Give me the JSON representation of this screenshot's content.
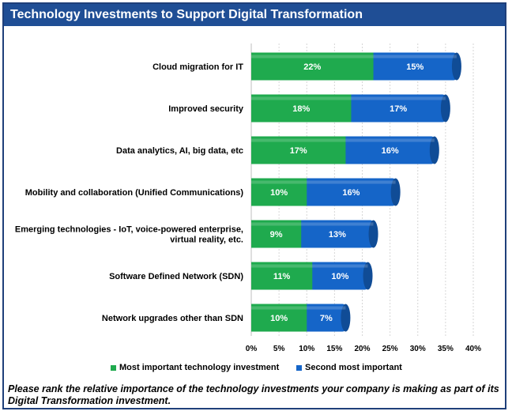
{
  "title": "Technology Investments to Support Digital Transformation",
  "note": "Please rank the relative importance of the technology investments your company is making as part of its Digital Transformation investment.",
  "colors": {
    "header_bg": "#1f4e95",
    "most_important": "#1faa4e",
    "second_most": "#1565c8"
  },
  "chart_data": {
    "type": "bar",
    "orientation": "horizontal",
    "stacked": true,
    "categories": [
      "Cloud migration for IT",
      "Improved security",
      "Data analytics, AI, big data, etc",
      "Mobility and collaboration (Unified Communications)",
      "Emerging technologies - IoT, voice-powered enterprise, virtual reality, etc.",
      "Software Defined Network (SDN)",
      "Network upgrades other than SDN"
    ],
    "category_lines": [
      [
        "Cloud migration for IT"
      ],
      [
        "Improved security"
      ],
      [
        "Data analytics, AI, big data, etc"
      ],
      [
        "Mobility and collaboration (Unified Communications)"
      ],
      [
        "Emerging technologies - IoT, voice-powered enterprise,",
        "virtual reality, etc."
      ],
      [
        "Software Defined Network (SDN)"
      ],
      [
        "Network upgrades other than SDN"
      ]
    ],
    "series": [
      {
        "name": "Most important technology investment",
        "values": [
          22,
          18,
          17,
          10,
          9,
          11,
          10
        ]
      },
      {
        "name": "Second most important",
        "values": [
          15,
          17,
          16,
          16,
          13,
          10,
          7
        ]
      }
    ],
    "xlim": [
      0,
      40
    ],
    "xticks": [
      "0%",
      "5%",
      "10%",
      "15%",
      "20%",
      "25%",
      "30%",
      "35%",
      "40%"
    ],
    "xtick_values": [
      0,
      5,
      10,
      15,
      20,
      25,
      30,
      35,
      40
    ],
    "grid": true,
    "legend_position": "bottom"
  }
}
